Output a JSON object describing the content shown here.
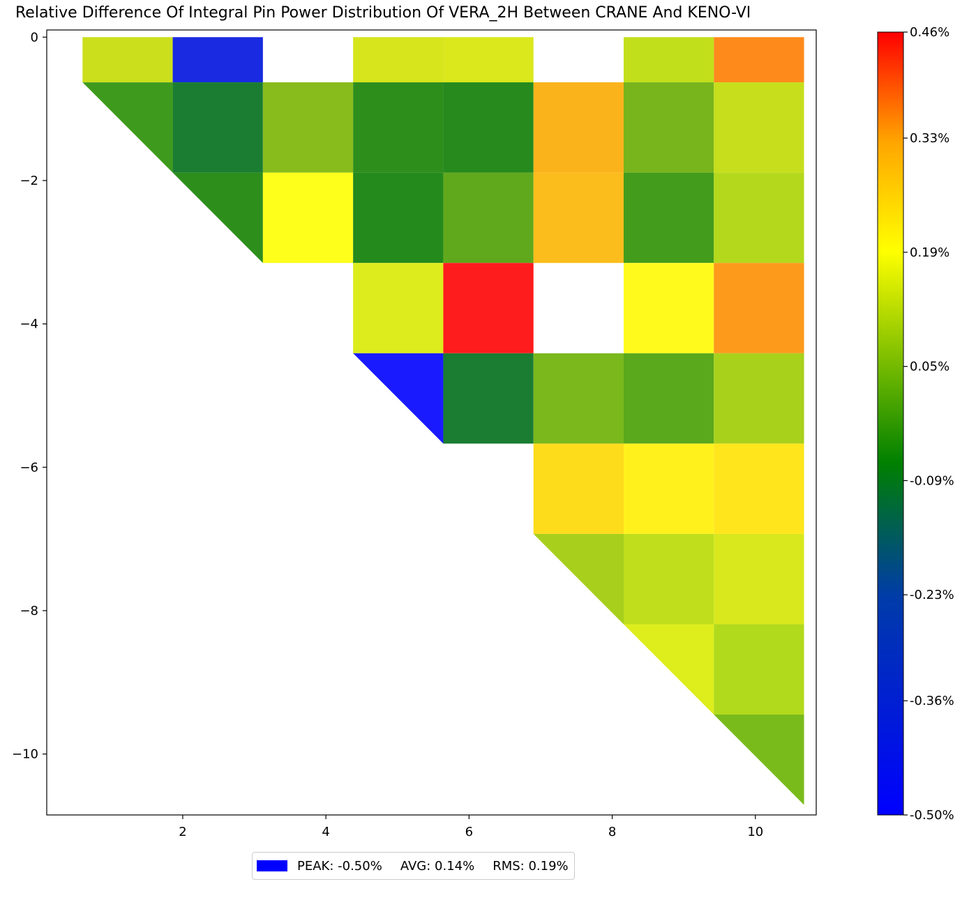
{
  "chart_data": {
    "type": "heatmap",
    "title": "Relative Difference Of Integral Pin Power Distribution Of VERA_2H Between CRANE And KENO-VI",
    "xlabel": "",
    "ylabel": "",
    "xlim": [
      0.1,
      10.85
    ],
    "ylim": [
      -10.85,
      0.1
    ],
    "x_ticks": [
      2,
      4,
      6,
      8,
      10
    ],
    "x_tick_labels": [
      "2",
      "4",
      "6",
      "8",
      "10"
    ],
    "y_ticks": [
      0,
      -2,
      -4,
      -6,
      -8,
      -10
    ],
    "y_tick_labels": [
      "0",
      "−2",
      "−4",
      "−6",
      "−8",
      "−10"
    ],
    "colorbar": {
      "range": [
        -0.5,
        0.46
      ],
      "tick_values": [
        0.46,
        0.33,
        0.19,
        0.05,
        -0.09,
        -0.23,
        -0.36,
        -0.5
      ],
      "tick_labels": [
        "0.46%",
        "0.33%",
        "0.19%",
        "0.05%",
        "-0.09%",
        "-0.23%",
        "-0.36%",
        "-0.50%"
      ],
      "colors": [
        "#0000ff",
        "#00a000",
        "#ffff00",
        "#ff0000"
      ]
    },
    "x_edges": [
      0.6,
      1.86,
      3.12,
      4.38,
      5.64,
      6.9,
      8.16,
      9.42,
      10.68
    ],
    "y_edges": [
      0,
      -0.63,
      -1.89,
      -3.15,
      -4.41,
      -5.67,
      -6.93,
      -8.19,
      -9.45,
      -10.71
    ],
    "cells": [
      {
        "row": 0,
        "col": 0,
        "value": 0.05,
        "color": "#ccdf1c",
        "shape": "square"
      },
      {
        "row": 0,
        "col": 1,
        "value": -0.5,
        "color": "#1a2ae0",
        "shape": "square"
      },
      {
        "row": 0,
        "col": 3,
        "value": 0.06,
        "color": "#d6e51c",
        "shape": "square"
      },
      {
        "row": 0,
        "col": 4,
        "value": 0.07,
        "color": "#dae81c",
        "shape": "square"
      },
      {
        "row": 0,
        "col": 6,
        "value": 0.03,
        "color": "#c2df1c",
        "shape": "square"
      },
      {
        "row": 0,
        "col": 7,
        "value": 0.3,
        "color": "#ff8a1c",
        "shape": "square"
      },
      {
        "row": 1,
        "col": 0,
        "value": -0.13,
        "color": "#3e9a1c",
        "shape": "triangle"
      },
      {
        "row": 1,
        "col": 1,
        "value": -0.2,
        "color": "#1a7d32",
        "shape": "square"
      },
      {
        "row": 1,
        "col": 2,
        "value": -0.03,
        "color": "#88bc1c",
        "shape": "square"
      },
      {
        "row": 1,
        "col": 3,
        "value": -0.16,
        "color": "#2e8e1c",
        "shape": "square"
      },
      {
        "row": 1,
        "col": 4,
        "value": -0.17,
        "color": "#268a1c",
        "shape": "square"
      },
      {
        "row": 1,
        "col": 5,
        "value": 0.2,
        "color": "#fbb31c",
        "shape": "square"
      },
      {
        "row": 1,
        "col": 6,
        "value": -0.06,
        "color": "#78b41c",
        "shape": "square"
      },
      {
        "row": 1,
        "col": 7,
        "value": 0.03,
        "color": "#c6de1c",
        "shape": "square"
      },
      {
        "row": 2,
        "col": 1,
        "value": -0.16,
        "color": "#2e8e1c",
        "shape": "triangle"
      },
      {
        "row": 2,
        "col": 2,
        "value": 0.12,
        "color": "#ffff1c",
        "shape": "square"
      },
      {
        "row": 2,
        "col": 3,
        "value": -0.17,
        "color": "#248a1c",
        "shape": "square"
      },
      {
        "row": 2,
        "col": 4,
        "value": -0.09,
        "color": "#60a81c",
        "shape": "square"
      },
      {
        "row": 2,
        "col": 5,
        "value": 0.19,
        "color": "#fbbd1c",
        "shape": "square"
      },
      {
        "row": 2,
        "col": 6,
        "value": -0.12,
        "color": "#449c1c",
        "shape": "square"
      },
      {
        "row": 2,
        "col": 7,
        "value": 0.02,
        "color": "#b4d91c",
        "shape": "square"
      },
      {
        "row": 3,
        "col": 3,
        "value": 0.07,
        "color": "#dcec1c",
        "shape": "square"
      },
      {
        "row": 3,
        "col": 4,
        "value": 0.46,
        "color": "#ff1c1c",
        "shape": "square"
      },
      {
        "row": 3,
        "col": 6,
        "value": 0.12,
        "color": "#fffa1c",
        "shape": "square"
      },
      {
        "row": 3,
        "col": 7,
        "value": 0.27,
        "color": "#fd9a1c",
        "shape": "square"
      },
      {
        "row": 4,
        "col": 3,
        "value": -0.5,
        "color": "#1a1aff",
        "shape": "triangle"
      },
      {
        "row": 4,
        "col": 4,
        "value": -0.2,
        "color": "#1a7d32",
        "shape": "square"
      },
      {
        "row": 4,
        "col": 5,
        "value": -0.06,
        "color": "#7ab81c",
        "shape": "square"
      },
      {
        "row": 4,
        "col": 6,
        "value": -0.1,
        "color": "#5aa81c",
        "shape": "square"
      },
      {
        "row": 4,
        "col": 7,
        "value": 0.0,
        "color": "#a8d11c",
        "shape": "square"
      },
      {
        "row": 5,
        "col": 5,
        "value": 0.15,
        "color": "#fddc1c",
        "shape": "square"
      },
      {
        "row": 5,
        "col": 6,
        "value": 0.12,
        "color": "#fff21c",
        "shape": "square"
      },
      {
        "row": 5,
        "col": 7,
        "value": 0.14,
        "color": "#ffe61c",
        "shape": "square"
      },
      {
        "row": 6,
        "col": 5,
        "value": 0.0,
        "color": "#a8cf1c",
        "shape": "triangle"
      },
      {
        "row": 6,
        "col": 6,
        "value": 0.03,
        "color": "#c0de1c",
        "shape": "square"
      },
      {
        "row": 6,
        "col": 7,
        "value": 0.07,
        "color": "#d8e81c",
        "shape": "square"
      },
      {
        "row": 7,
        "col": 6,
        "value": 0.08,
        "color": "#deee1c",
        "shape": "triangle"
      },
      {
        "row": 7,
        "col": 7,
        "value": 0.02,
        "color": "#b2da1c",
        "shape": "square"
      },
      {
        "row": 8,
        "col": 7,
        "value": -0.05,
        "color": "#7abb1c",
        "shape": "triangle"
      }
    ],
    "legend_summary": {
      "peak": "PEAK: -0.50%",
      "avg": "AVG: 0.14%",
      "rms": "RMS: 0.19%",
      "swatch_color": "#0000ff"
    }
  }
}
